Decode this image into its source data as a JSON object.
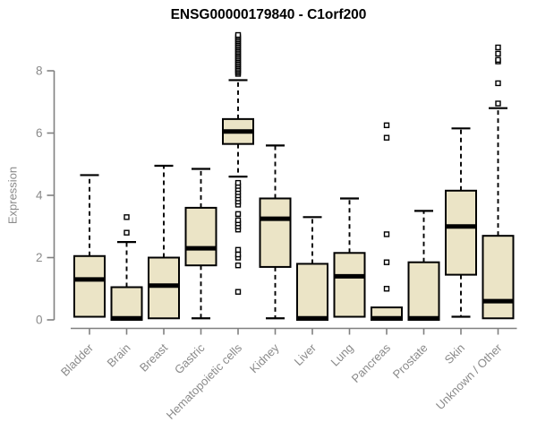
{
  "chart_data": {
    "type": "boxplot",
    "title": "ENSG00000179840 - C1orf200",
    "ylabel": "Expression",
    "xlabel": "",
    "ylim": [
      0,
      9.2
    ],
    "yticks": [
      0,
      2,
      4,
      6,
      8
    ],
    "grid": false,
    "legend": "none",
    "colors": {
      "box_fill": "#EBE4C6",
      "box_border": "#000000",
      "median": "#000000",
      "whisker": "#000000",
      "outlier_stroke": "#000000",
      "axis": "#808080",
      "axis_label": "#8a8a8a",
      "title": "#000000"
    },
    "outlier_marker": "open-square",
    "categories": [
      "Bladder",
      "Brain",
      "Breast",
      "Gastric",
      "Hematopoietic cells",
      "Kidney",
      "Liver",
      "Lung",
      "Pancreas",
      "Prostate",
      "Skin",
      "Unknown / Other"
    ],
    "series": [
      {
        "category": "Bladder",
        "whisker_low": 0.1,
        "q1": 0.1,
        "median": 1.3,
        "q3": 2.05,
        "whisker_high": 4.65,
        "outliers": []
      },
      {
        "category": "Brain",
        "whisker_low": 0,
        "q1": 0,
        "median": 0.05,
        "q3": 1.05,
        "whisker_high": 2.5,
        "outliers": [
          2.8,
          3.3
        ]
      },
      {
        "category": "Breast",
        "whisker_low": 0.05,
        "q1": 0.05,
        "median": 1.1,
        "q3": 2.0,
        "whisker_high": 4.95,
        "outliers": []
      },
      {
        "category": "Gastric",
        "whisker_low": 0.05,
        "q1": 1.75,
        "median": 2.3,
        "q3": 3.6,
        "whisker_high": 4.85,
        "outliers": []
      },
      {
        "category": "Hematopoietic cells",
        "whisker_low": 4.6,
        "q1": 5.65,
        "median": 6.05,
        "q3": 6.45,
        "whisker_high": 7.7,
        "outliers": [
          0.9,
          1.75,
          2.0,
          2.1,
          2.25,
          2.9,
          3.0,
          3.1,
          3.2,
          3.4,
          3.7,
          3.8,
          3.9,
          4.0,
          4.1,
          4.2,
          4.3,
          4.4,
          7.9,
          7.95,
          8.0,
          8.05,
          8.1,
          8.15,
          8.2,
          8.25,
          8.3,
          8.35,
          8.4,
          8.45,
          8.5,
          8.55,
          8.6,
          8.65,
          8.7,
          8.75,
          8.8,
          8.85,
          8.9,
          8.95,
          9.0,
          9.05,
          9.1,
          9.15
        ]
      },
      {
        "category": "Kidney",
        "whisker_low": 0.05,
        "q1": 1.7,
        "median": 3.25,
        "q3": 3.9,
        "whisker_high": 5.6,
        "outliers": []
      },
      {
        "category": "Liver",
        "whisker_low": 0,
        "q1": 0,
        "median": 0.05,
        "q3": 1.8,
        "whisker_high": 3.3,
        "outliers": []
      },
      {
        "category": "Lung",
        "whisker_low": 0.1,
        "q1": 0.1,
        "median": 1.4,
        "q3": 2.15,
        "whisker_high": 3.9,
        "outliers": []
      },
      {
        "category": "Pancreas",
        "whisker_low": 0,
        "q1": 0,
        "median": 0.05,
        "q3": 0.4,
        "whisker_high": 0.4,
        "outliers": [
          1.0,
          1.85,
          2.75,
          5.85,
          6.25
        ]
      },
      {
        "category": "Prostate",
        "whisker_low": 0,
        "q1": 0,
        "median": 0.05,
        "q3": 1.85,
        "whisker_high": 3.5,
        "outliers": []
      },
      {
        "category": "Skin",
        "whisker_low": 0.1,
        "q1": 1.45,
        "median": 3.0,
        "q3": 4.15,
        "whisker_high": 6.15,
        "outliers": []
      },
      {
        "category": "Unknown / Other",
        "whisker_low": 0.05,
        "q1": 0.05,
        "median": 0.6,
        "q3": 2.7,
        "whisker_high": 6.8,
        "outliers": [
          6.95,
          7.6,
          8.3,
          8.35,
          8.55,
          8.75
        ]
      }
    ]
  }
}
